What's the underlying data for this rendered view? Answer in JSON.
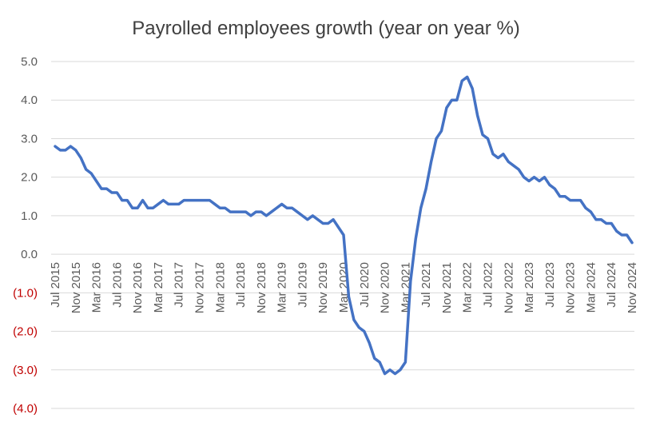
{
  "chart_data": {
    "type": "line",
    "title": "Payrolled employees growth (year on year %)",
    "xlabel": "",
    "ylabel": "",
    "ylim": [
      -4.0,
      5.0
    ],
    "yticks": [
      {
        "value": 5.0,
        "label": "5.0"
      },
      {
        "value": 4.0,
        "label": "4.0"
      },
      {
        "value": 3.0,
        "label": "3.0"
      },
      {
        "value": 2.0,
        "label": "2.0"
      },
      {
        "value": 1.0,
        "label": "1.0"
      },
      {
        "value": 0.0,
        "label": "0.0"
      },
      {
        "value": -1.0,
        "label": "(1.0)"
      },
      {
        "value": -2.0,
        "label": "(2.0)"
      },
      {
        "value": -3.0,
        "label": "(3.0)"
      },
      {
        "value": -4.0,
        "label": "(4.0)"
      }
    ],
    "x_tick_labels": [
      "Jul 2015",
      "Nov 2015",
      "Mar 2016",
      "Jul 2016",
      "Nov 2016",
      "Mar 2017",
      "Jul 2017",
      "Nov 2017",
      "Mar 2018",
      "Jul 2018",
      "Nov 2018",
      "Mar 2019",
      "Jul 2019",
      "Nov 2019",
      "Mar 2020",
      "Jul 2020",
      "Nov 2020",
      "Mar 2021",
      "Jul 2021",
      "Nov 2021",
      "Mar 2022",
      "Jul 2022",
      "Nov 2022",
      "Mar 2023",
      "Jul 2023",
      "Nov 2023",
      "Mar 2024",
      "Jul 2024",
      "Nov 2024"
    ],
    "grid": true,
    "legend": "none",
    "colors": {
      "line": "#4472C4",
      "grid": "#d9d9d9",
      "positive_tick": "#595959",
      "negative_tick": "#C00000",
      "title": "#404040"
    },
    "x": [
      "Jul 2015",
      "Aug 2015",
      "Sep 2015",
      "Oct 2015",
      "Nov 2015",
      "Dec 2015",
      "Jan 2016",
      "Feb 2016",
      "Mar 2016",
      "Apr 2016",
      "May 2016",
      "Jun 2016",
      "Jul 2016",
      "Aug 2016",
      "Sep 2016",
      "Oct 2016",
      "Nov 2016",
      "Dec 2016",
      "Jan 2017",
      "Feb 2017",
      "Mar 2017",
      "Apr 2017",
      "May 2017",
      "Jun 2017",
      "Jul 2017",
      "Aug 2017",
      "Sep 2017",
      "Oct 2017",
      "Nov 2017",
      "Dec 2017",
      "Jan 2018",
      "Feb 2018",
      "Mar 2018",
      "Apr 2018",
      "May 2018",
      "Jun 2018",
      "Jul 2018",
      "Aug 2018",
      "Sep 2018",
      "Oct 2018",
      "Nov 2018",
      "Dec 2018",
      "Jan 2019",
      "Feb 2019",
      "Mar 2019",
      "Apr 2019",
      "May 2019",
      "Jun 2019",
      "Jul 2019",
      "Aug 2019",
      "Sep 2019",
      "Oct 2019",
      "Nov 2019",
      "Dec 2019",
      "Jan 2020",
      "Feb 2020",
      "Mar 2020",
      "Apr 2020",
      "May 2020",
      "Jun 2020",
      "Jul 2020",
      "Aug 2020",
      "Sep 2020",
      "Oct 2020",
      "Nov 2020",
      "Dec 2020",
      "Jan 2021",
      "Feb 2021",
      "Mar 2021",
      "Apr 2021",
      "May 2021",
      "Jun 2021",
      "Jul 2021",
      "Aug 2021",
      "Sep 2021",
      "Oct 2021",
      "Nov 2021",
      "Dec 2021",
      "Jan 2022",
      "Feb 2022",
      "Mar 2022",
      "Apr 2022",
      "May 2022",
      "Jun 2022",
      "Jul 2022",
      "Aug 2022",
      "Sep 2022",
      "Oct 2022",
      "Nov 2022",
      "Dec 2022",
      "Jan 2023",
      "Feb 2023",
      "Mar 2023",
      "Apr 2023",
      "May 2023",
      "Jun 2023",
      "Jul 2023",
      "Aug 2023",
      "Sep 2023",
      "Oct 2023",
      "Nov 2023",
      "Dec 2023",
      "Jan 2024",
      "Feb 2024",
      "Mar 2024",
      "Apr 2024",
      "May 2024",
      "Jun 2024",
      "Jul 2024",
      "Aug 2024",
      "Sep 2024",
      "Oct 2024",
      "Nov 2024"
    ],
    "series": [
      {
        "values": [
          2.8,
          2.7,
          2.7,
          2.8,
          2.7,
          2.5,
          2.2,
          2.1,
          1.9,
          1.7,
          1.7,
          1.6,
          1.6,
          1.4,
          1.4,
          1.2,
          1.2,
          1.4,
          1.2,
          1.2,
          1.3,
          1.4,
          1.3,
          1.3,
          1.3,
          1.4,
          1.4,
          1.4,
          1.4,
          1.4,
          1.4,
          1.3,
          1.2,
          1.2,
          1.1,
          1.1,
          1.1,
          1.1,
          1.0,
          1.1,
          1.1,
          1.0,
          1.1,
          1.2,
          1.3,
          1.2,
          1.2,
          1.1,
          1.0,
          0.9,
          1.0,
          0.9,
          0.8,
          0.8,
          0.9,
          0.7,
          0.5,
          -1.1,
          -1.7,
          -1.9,
          -2.0,
          -2.3,
          -2.7,
          -2.8,
          -3.1,
          -3.0,
          -3.1,
          -3.0,
          -2.8,
          -0.7,
          0.4,
          1.2,
          1.7,
          2.4,
          3.0,
          3.2,
          3.8,
          4.0,
          4.0,
          4.5,
          4.6,
          4.3,
          3.6,
          3.1,
          3.0,
          2.6,
          2.5,
          2.6,
          2.4,
          2.3,
          2.2,
          2.0,
          1.9,
          2.0,
          1.9,
          2.0,
          1.8,
          1.7,
          1.5,
          1.5,
          1.4,
          1.4,
          1.4,
          1.2,
          1.1,
          0.9,
          0.9,
          0.8,
          0.8,
          0.6,
          0.5,
          0.5,
          0.3
        ]
      }
    ]
  }
}
